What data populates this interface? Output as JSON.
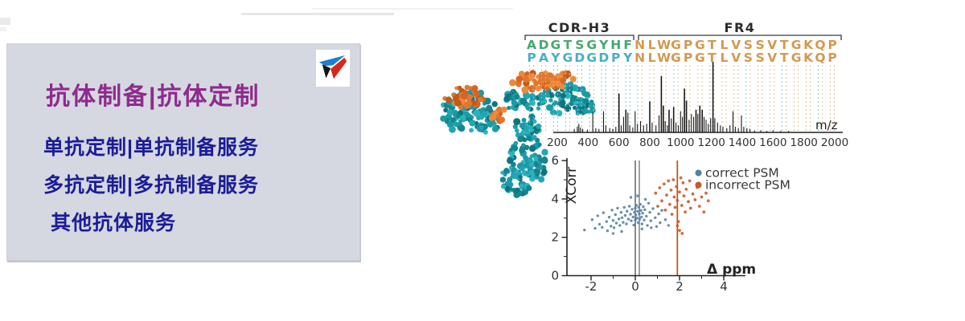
{
  "panel": {
    "title": "抗体制备|抗体定制",
    "items": [
      "单抗定制|单抗制备服务",
      "多抗定制|多抗制备服务",
      "其他抗体服务"
    ],
    "colors": {
      "bg": "#d5d8e0",
      "title": "#8e2b8e",
      "items": "#1c1c97"
    }
  },
  "logo": {
    "name": "triangle-pinwheel-logo",
    "colors": {
      "top": "#1b7fd4",
      "left": "#141414",
      "right": "#d6281a"
    }
  },
  "alignment": {
    "region_labels": [
      "CDR-H3",
      "FR4"
    ],
    "rows": [
      "ADGTSGYHFNLWGPGTLVSSVTGKQP",
      "PAYGDGDPYNLWGPGTLVSSVTGKQP"
    ],
    "cdr_length": 9,
    "colors": {
      "row1_cdr": "#45a96e",
      "row2_cdr": "#49aec4",
      "framework": "#d4984f",
      "bracket": "#3a3a3a",
      "guide_teal": "#7ecbc3",
      "guide_orange": "#e2c08c"
    }
  },
  "molecule": {
    "label": "antibody-space-filling-model",
    "colors": {
      "teal": "#1d9aa8",
      "orange": "#e2762e"
    }
  },
  "chart_data": [
    {
      "type": "bar",
      "title": "MS/MS fragment spectrum",
      "xlabel": "m/z",
      "xlim": [
        100,
        2050
      ],
      "xticks": [
        200,
        400,
        600,
        800,
        1000,
        1200,
        1400,
        1600,
        1800,
        2000
      ],
      "bar_color": "#1a1a1a",
      "peaks": [
        [
          310,
          0.05
        ],
        [
          330,
          0.08
        ],
        [
          340,
          0.12
        ],
        [
          350,
          0.07
        ],
        [
          365,
          0.05
        ],
        [
          395,
          0.04
        ],
        [
          430,
          0.28
        ],
        [
          450,
          0.06
        ],
        [
          470,
          0.05
        ],
        [
          500,
          0.3
        ],
        [
          515,
          0.1
        ],
        [
          540,
          0.06
        ],
        [
          560,
          0.05
        ],
        [
          580,
          0.08
        ],
        [
          600,
          0.55
        ],
        [
          615,
          0.1
        ],
        [
          630,
          0.22
        ],
        [
          645,
          0.32
        ],
        [
          658,
          0.28
        ],
        [
          670,
          0.1
        ],
        [
          690,
          0.07
        ],
        [
          705,
          0.3
        ],
        [
          720,
          0.12
        ],
        [
          740,
          0.16
        ],
        [
          760,
          0.1
        ],
        [
          780,
          0.12
        ],
        [
          800,
          0.44
        ],
        [
          815,
          0.14
        ],
        [
          840,
          0.1
        ],
        [
          860,
          0.24
        ],
        [
          875,
          0.8
        ],
        [
          888,
          0.38
        ],
        [
          900,
          0.16
        ],
        [
          915,
          0.1
        ],
        [
          925,
          0.32
        ],
        [
          940,
          0.2
        ],
        [
          955,
          0.36
        ],
        [
          970,
          0.14
        ],
        [
          985,
          0.1
        ],
        [
          1000,
          0.3
        ],
        [
          1012,
          0.22
        ],
        [
          1025,
          0.62
        ],
        [
          1038,
          0.45
        ],
        [
          1055,
          0.18
        ],
        [
          1070,
          0.26
        ],
        [
          1085,
          0.22
        ],
        [
          1100,
          0.32
        ],
        [
          1112,
          0.26
        ],
        [
          1125,
          0.38
        ],
        [
          1140,
          0.32
        ],
        [
          1152,
          0.22
        ],
        [
          1165,
          0.18
        ],
        [
          1180,
          0.12
        ],
        [
          1195,
          0.2
        ],
        [
          1210,
          1.0
        ],
        [
          1222,
          0.2
        ],
        [
          1240,
          0.14
        ],
        [
          1258,
          0.1
        ],
        [
          1275,
          0.08
        ],
        [
          1300,
          0.06
        ],
        [
          1320,
          0.1
        ],
        [
          1340,
          0.3
        ],
        [
          1355,
          0.08
        ],
        [
          1375,
          0.06
        ],
        [
          1395,
          0.24
        ],
        [
          1410,
          0.08
        ],
        [
          1430,
          0.06
        ],
        [
          1450,
          0.05
        ],
        [
          1480,
          0.03
        ],
        [
          1520,
          0.03
        ],
        [
          1560,
          0.02
        ],
        [
          1600,
          0.03
        ],
        [
          1650,
          0.02
        ],
        [
          1700,
          0.02
        ]
      ]
    },
    {
      "type": "scatter",
      "xlabel": "Δ ppm",
      "ylabel": "XCorr",
      "xlim": [
        -3.1,
        5.0
      ],
      "ylim": [
        0,
        6
      ],
      "xticks": [
        -2,
        0,
        2,
        4
      ],
      "yticks": [
        0,
        2,
        4,
        6
      ],
      "legend_position": "top-right",
      "vlines": [
        {
          "x": 0.0,
          "color": "#4a4a4a"
        },
        {
          "x": 0.18,
          "color": "#6e6e6e"
        },
        {
          "x": 1.9,
          "color": "#c2581d"
        }
      ],
      "series": [
        {
          "name": "correct PSM",
          "color": "#54809c",
          "points": [
            [
              -2.3,
              2.38
            ],
            [
              -1.95,
              2.92
            ],
            [
              -1.82,
              2.47
            ],
            [
              -1.7,
              3.12
            ],
            [
              -1.62,
              2.68
            ],
            [
              -1.5,
              2.52
            ],
            [
              -1.44,
              3.28
            ],
            [
              -1.3,
              2.82
            ],
            [
              -1.26,
              2.34
            ],
            [
              -1.18,
              3.05
            ],
            [
              -1.1,
              2.58
            ],
            [
              -1.05,
              3.42
            ],
            [
              -1.0,
              2.88
            ],
            [
              -0.96,
              2.5
            ],
            [
              -0.9,
              3.18
            ],
            [
              -0.86,
              2.74
            ],
            [
              -0.8,
              3.52
            ],
            [
              -0.74,
              2.96
            ],
            [
              -0.7,
              2.62
            ],
            [
              -0.64,
              3.3
            ],
            [
              -0.6,
              3.02
            ],
            [
              -0.55,
              2.78
            ],
            [
              -0.5,
              3.56
            ],
            [
              -0.46,
              3.14
            ],
            [
              -0.4,
              2.7
            ],
            [
              -0.37,
              3.36
            ],
            [
              -0.31,
              2.95
            ],
            [
              -0.27,
              3.62
            ],
            [
              -0.22,
              3.2
            ],
            [
              -0.18,
              2.86
            ],
            [
              -0.14,
              3.46
            ],
            [
              -0.1,
              3.06
            ],
            [
              -0.07,
              2.64
            ],
            [
              -0.04,
              3.3
            ],
            [
              0.0,
              3.52
            ],
            [
              0.0,
              2.9
            ],
            [
              0.03,
              3.16
            ],
            [
              0.06,
              3.66
            ],
            [
              0.08,
              3.0
            ],
            [
              0.1,
              3.36
            ],
            [
              0.13,
              2.76
            ],
            [
              0.16,
              3.56
            ],
            [
              0.18,
              3.22
            ],
            [
              0.2,
              2.94
            ],
            [
              0.23,
              3.72
            ],
            [
              0.26,
              3.4
            ],
            [
              0.28,
              3.06
            ],
            [
              0.3,
              2.7
            ],
            [
              0.33,
              3.26
            ],
            [
              0.36,
              3.6
            ],
            [
              0.4,
              2.9
            ],
            [
              0.43,
              3.44
            ],
            [
              0.5,
              3.1
            ],
            [
              0.55,
              2.62
            ],
            [
              0.6,
              3.78
            ],
            [
              0.66,
              3.3
            ],
            [
              0.7,
              2.86
            ],
            [
              0.8,
              3.5
            ],
            [
              0.9,
              3.02
            ],
            [
              0.96,
              2.56
            ],
            [
              1.06,
              3.22
            ],
            [
              1.12,
              2.76
            ],
            [
              1.2,
              3.4
            ],
            [
              1.36,
              2.92
            ],
            [
              1.5,
              2.62
            ],
            [
              0.46,
              3.98
            ],
            [
              -0.2,
              4.08
            ],
            [
              0.1,
              4.16
            ],
            [
              -0.62,
              2.3
            ],
            [
              0.3,
              2.44
            ],
            [
              -1.0,
              2.2
            ],
            [
              0.72,
              2.5
            ]
          ]
        },
        {
          "name": "incorrect PSM",
          "color": "#c55a27",
          "points": [
            [
              0.92,
              4.3
            ],
            [
              1.02,
              3.62
            ],
            [
              1.1,
              4.58
            ],
            [
              1.2,
              3.9
            ],
            [
              1.3,
              4.78
            ],
            [
              1.36,
              3.42
            ],
            [
              1.42,
              4.2
            ],
            [
              1.5,
              4.94
            ],
            [
              1.56,
              3.72
            ],
            [
              1.62,
              4.46
            ],
            [
              1.66,
              3.2
            ],
            [
              1.72,
              5.0
            ],
            [
              1.76,
              4.1
            ],
            [
              1.8,
              3.56
            ],
            [
              1.86,
              4.64
            ],
            [
              1.9,
              3.92
            ],
            [
              1.95,
              2.82
            ],
            [
              2.0,
              4.36
            ],
            [
              2.06,
              5.1
            ],
            [
              2.1,
              3.66
            ],
            [
              2.16,
              4.84
            ],
            [
              2.2,
              4.16
            ],
            [
              2.26,
              3.32
            ],
            [
              2.3,
              4.5
            ],
            [
              2.4,
              3.86
            ],
            [
              2.46,
              4.94
            ],
            [
              2.5,
              3.52
            ],
            [
              2.6,
              4.26
            ],
            [
              2.7,
              3.96
            ],
            [
              2.8,
              4.6
            ],
            [
              2.9,
              3.62
            ],
            [
              3.0,
              4.1
            ],
            [
              3.1,
              3.32
            ],
            [
              3.2,
              4.3
            ],
            [
              3.3,
              3.9
            ],
            [
              2.0,
              2.36
            ],
            [
              2.12,
              2.2
            ],
            [
              1.9,
              2.6
            ]
          ]
        }
      ]
    }
  ]
}
